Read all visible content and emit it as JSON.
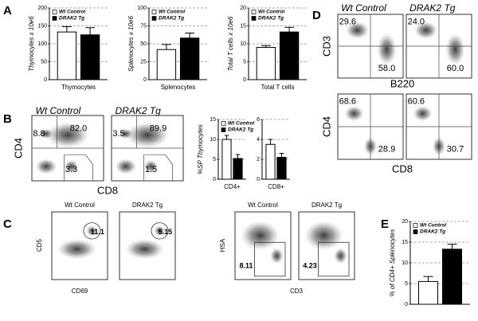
{
  "letters": [
    "A",
    "B",
    "C",
    "D",
    "E"
  ],
  "chart_data": [
    {
      "type": "bar",
      "y_label": "Thymocytes x 10e6",
      "categories": [
        "Thymocytes"
      ],
      "ylim": [
        0,
        200
      ],
      "yticks": [
        0,
        50,
        100,
        150,
        200
      ],
      "grid": true,
      "legend": "upper left",
      "series": [
        {
          "name": "Wt Control",
          "color": "#ffffff",
          "values": [
            133
          ],
          "errors": [
            15
          ]
        },
        {
          "name": "DRAK2 Tg",
          "color": "#000000",
          "values": [
            125
          ],
          "errors": [
            20
          ]
        }
      ]
    },
    {
      "type": "bar",
      "y_label": "Splenocytes x 10e6",
      "categories": [
        "Splenocytes"
      ],
      "ylim": [
        0,
        100
      ],
      "yticks": [
        0,
        25,
        50,
        75,
        100
      ],
      "grid": true,
      "legend": "upper left",
      "series": [
        {
          "name": "Wt Control",
          "color": "#ffffff",
          "values": [
            42
          ],
          "errors": [
            7
          ]
        },
        {
          "name": "DRAK2 Tg",
          "color": "#000000",
          "values": [
            58
          ],
          "errors": [
            7
          ]
        }
      ]
    },
    {
      "type": "bar",
      "y_label": "Total T cells x 10e6",
      "categories": [
        "Total T cells"
      ],
      "ylim": [
        0,
        20
      ],
      "yticks": [
        0,
        5,
        10,
        15,
        20
      ],
      "grid": true,
      "legend": "upper left",
      "series": [
        {
          "name": "Wt Control",
          "color": "#ffffff",
          "values": [
            9
          ],
          "errors": [
            0.5
          ]
        },
        {
          "name": "DRAK2 Tg",
          "color": "#000000",
          "values": [
            13.3
          ],
          "errors": [
            1.3
          ]
        }
      ]
    },
    {
      "type": "bar",
      "y_label": "%SP Thymocytes",
      "categories": [
        "CD4+"
      ],
      "ylim": [
        0,
        15
      ],
      "yticks": [
        0,
        5,
        10,
        15
      ],
      "grid": true,
      "legend": "upper left",
      "series": [
        {
          "name": "Wt Control",
          "color": "#ffffff",
          "values": [
            10
          ],
          "errors": [
            1
          ]
        },
        {
          "name": "DRAK2 Tg",
          "color": "#000000",
          "values": [
            5.2
          ],
          "errors": [
            1
          ]
        }
      ]
    },
    {
      "type": "bar",
      "categories": [
        "CD8+"
      ],
      "ylim": [
        0,
        6
      ],
      "yticks": [
        0,
        2,
        4,
        6
      ],
      "grid": true,
      "series": [
        {
          "color": "#ffffff",
          "values": [
            3.5
          ],
          "errors": [
            0.5
          ]
        },
        {
          "color": "#000000",
          "values": [
            2.2
          ],
          "errors": [
            0.4
          ]
        }
      ]
    },
    {
      "type": "bar",
      "y_label": "% of CD4+ Splenocytes",
      "categories": [
        null
      ],
      "ylim": [
        0,
        20
      ],
      "yticks": [
        0,
        5,
        10,
        15,
        20
      ],
      "grid": true,
      "legend": "upper left",
      "series": [
        {
          "name": "Wt Control",
          "color": "#ffffff",
          "values": [
            5.5
          ],
          "errors": [
            1.2
          ]
        },
        {
          "name": "DRAK2 Tg",
          "color": "#000000",
          "values": [
            13.3
          ],
          "errors": [
            1.2
          ]
        }
      ]
    }
  ],
  "flow": [
    {
      "titles": [
        "Wt Control",
        "DRAK2 Tg"
      ],
      "x_label": "CD8",
      "y_label": "CD4",
      "gates": [
        [
          "8.8",
          "82.0",
          "3.3"
        ],
        [
          "3.5",
          "89.9",
          "1.5"
        ]
      ]
    },
    {
      "titles": [
        "Wt Control",
        "DRAK2 Tg"
      ],
      "x_label": "CD69",
      "y_label": "CD5",
      "gates": [
        [
          "11.1"
        ],
        [
          "5.15"
        ]
      ]
    },
    {
      "titles": [
        "Wt Control",
        "DRAK2 Tg"
      ],
      "x_label": "CD3",
      "y_label": "HSA",
      "gates": [
        [
          "8.11"
        ],
        [
          "4.23"
        ]
      ]
    },
    {
      "titles": [
        "Wt Control",
        "DRAK2 Tg"
      ],
      "x_label": "B220",
      "y_label": "CD3",
      "gates": [
        [
          "29.6",
          "58.0"
        ],
        [
          "24.0",
          "60.0"
        ]
      ]
    },
    {
      "x_label": "CD8",
      "y_label": "CD4",
      "gates": [
        [
          "68.6",
          "28.9"
        ],
        [
          "60.6",
          "30.7"
        ]
      ]
    }
  ]
}
